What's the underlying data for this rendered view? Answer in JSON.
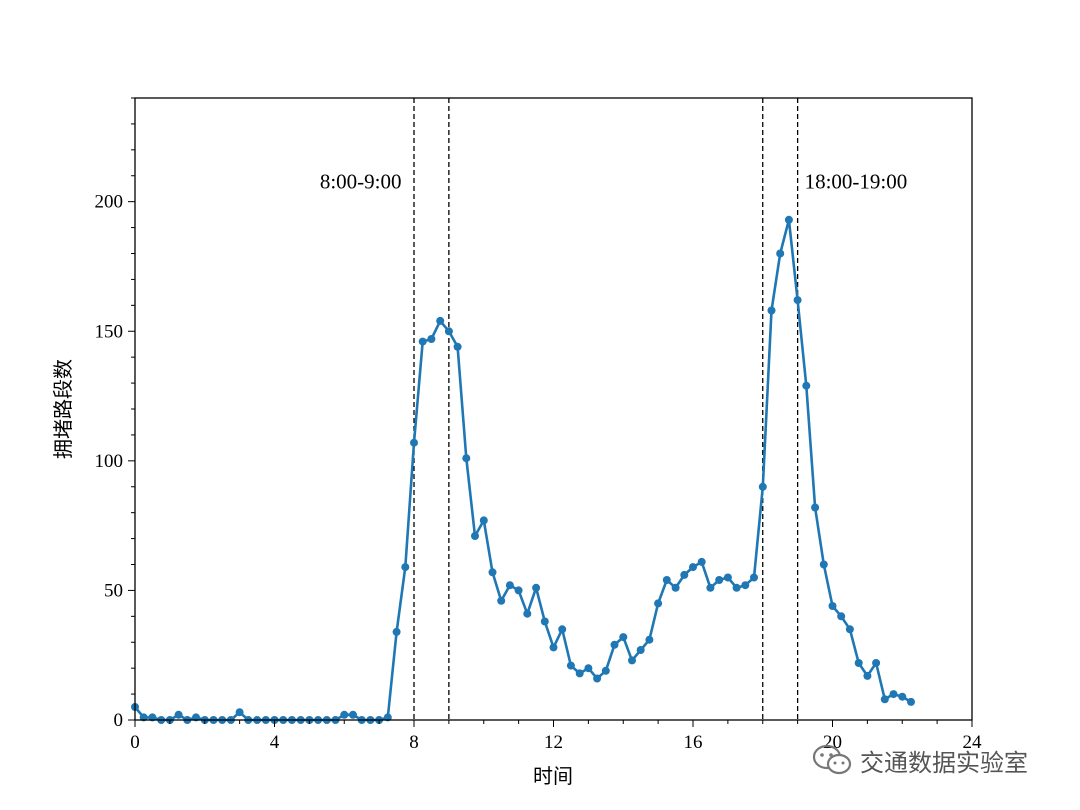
{
  "chart_data": {
    "type": "line",
    "xlabel": "时间",
    "ylabel": "拥堵路段数",
    "xlim": [
      0,
      24
    ],
    "ylim": [
      0,
      240
    ],
    "xticks": [
      0,
      4,
      8,
      12,
      16,
      20,
      24
    ],
    "yticks": [
      0,
      50,
      100,
      150,
      200
    ],
    "grid": false,
    "series": [
      {
        "color": "#1f77b4",
        "x": [
          0,
          0.25,
          0.5,
          0.75,
          1,
          1.25,
          1.5,
          1.75,
          2,
          2.25,
          2.5,
          2.75,
          3,
          3.25,
          3.5,
          3.75,
          4,
          4.25,
          4.5,
          4.75,
          5,
          5.25,
          5.5,
          5.75,
          6,
          6.25,
          6.5,
          6.75,
          7,
          7.25,
          7.5,
          7.75,
          8,
          8.25,
          8.5,
          8.75,
          9,
          9.25,
          9.5,
          9.75,
          10,
          10.25,
          10.5,
          10.75,
          11,
          11.25,
          11.5,
          11.75,
          12,
          12.25,
          12.5,
          12.75,
          13,
          13.25,
          13.5,
          13.75,
          14,
          14.25,
          14.5,
          14.75,
          15,
          15.25,
          15.5,
          15.75,
          16,
          16.25,
          16.5,
          16.75,
          17,
          17.25,
          17.5,
          17.75,
          18,
          18.25,
          18.5,
          18.75,
          19,
          19.25,
          19.5,
          19.75,
          20,
          20.25,
          20.5,
          20.75,
          21,
          21.25,
          21.5,
          21.75,
          22,
          22.25
        ],
        "y": [
          5,
          1,
          1,
          0,
          0,
          2,
          0,
          1,
          0,
          0,
          0,
          0,
          3,
          0,
          0,
          0,
          0,
          0,
          0,
          0,
          0,
          0,
          0,
          0,
          2,
          2,
          0,
          0,
          0,
          1,
          34,
          59,
          107,
          146,
          147,
          154,
          150,
          144,
          101,
          71,
          77,
          57,
          46,
          52,
          50,
          41,
          51,
          38,
          28,
          35,
          21,
          18,
          20,
          16,
          19,
          29,
          32,
          23,
          27,
          31,
          45,
          54,
          51,
          56,
          59,
          61,
          51,
          54,
          55,
          51,
          52,
          55,
          90,
          158,
          180,
          193,
          162,
          129,
          82,
          60,
          44,
          40,
          35,
          22,
          17,
          22,
          8,
          10,
          9,
          7
        ]
      }
    ],
    "vlines": [
      8,
      9,
      18,
      19
    ],
    "annotations": [
      {
        "text": "8:00-9:00",
        "x": 5.3,
        "y": 205
      },
      {
        "text": "18:00-19:00",
        "x": 19.2,
        "y": 205
      }
    ]
  },
  "watermark": {
    "text": "交通数据实验室",
    "icon": "wechat-icon"
  }
}
